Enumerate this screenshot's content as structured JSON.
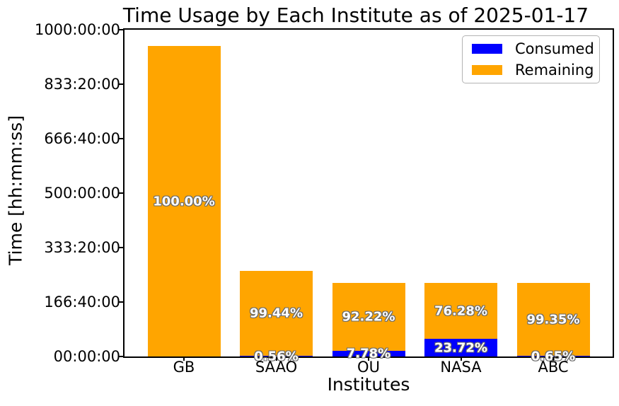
{
  "chart_data": {
    "type": "bar",
    "stacked": true,
    "title": "Time Usage by Each Institute as of 2025-01-17",
    "xlabel": "Institutes",
    "ylabel": "Time [hh:mm:ss]",
    "categories": [
      "GB",
      "SAAO",
      "OU",
      "NASA",
      "ABC"
    ],
    "totals_hours": [
      950,
      262,
      225,
      225,
      225
    ],
    "series": [
      {
        "name": "Consumed",
        "color": "#0000ff",
        "values_hours": [
          0,
          1.47,
          17.51,
          53.37,
          1.46
        ],
        "pct_labels": [
          null,
          "0.56%",
          "7.78%",
          "23.72%",
          "0.65%"
        ]
      },
      {
        "name": "Remaining",
        "color": "#ffa500",
        "values_hours": [
          950,
          260.53,
          207.49,
          171.63,
          223.54
        ],
        "pct_labels": [
          "100.00%",
          "99.44%",
          "92.22%",
          "76.28%",
          "99.35%"
        ]
      }
    ],
    "ylim_hours": [
      0,
      1000
    ],
    "y_ticks": [
      {
        "hours": 0,
        "label": "00:00:00"
      },
      {
        "hours": 166.6667,
        "label": "166:40:00"
      },
      {
        "hours": 333.3333,
        "label": "333:20:00"
      },
      {
        "hours": 500,
        "label": "500:00:00"
      },
      {
        "hours": 666.6667,
        "label": "666:40:00"
      },
      {
        "hours": 833.3333,
        "label": "833:20:00"
      },
      {
        "hours": 1000,
        "label": "1000:00:00"
      }
    ],
    "legend": {
      "position": "upper right",
      "entries": [
        "Consumed",
        "Remaining"
      ]
    },
    "grid": false,
    "colors": {
      "consumed": "#0000ff",
      "remaining": "#ffa500",
      "label_text": "#ffffff",
      "label_outline": "#6a6a6a",
      "axes": "#000000",
      "legend_border": "#b3b3b3"
    }
  }
}
